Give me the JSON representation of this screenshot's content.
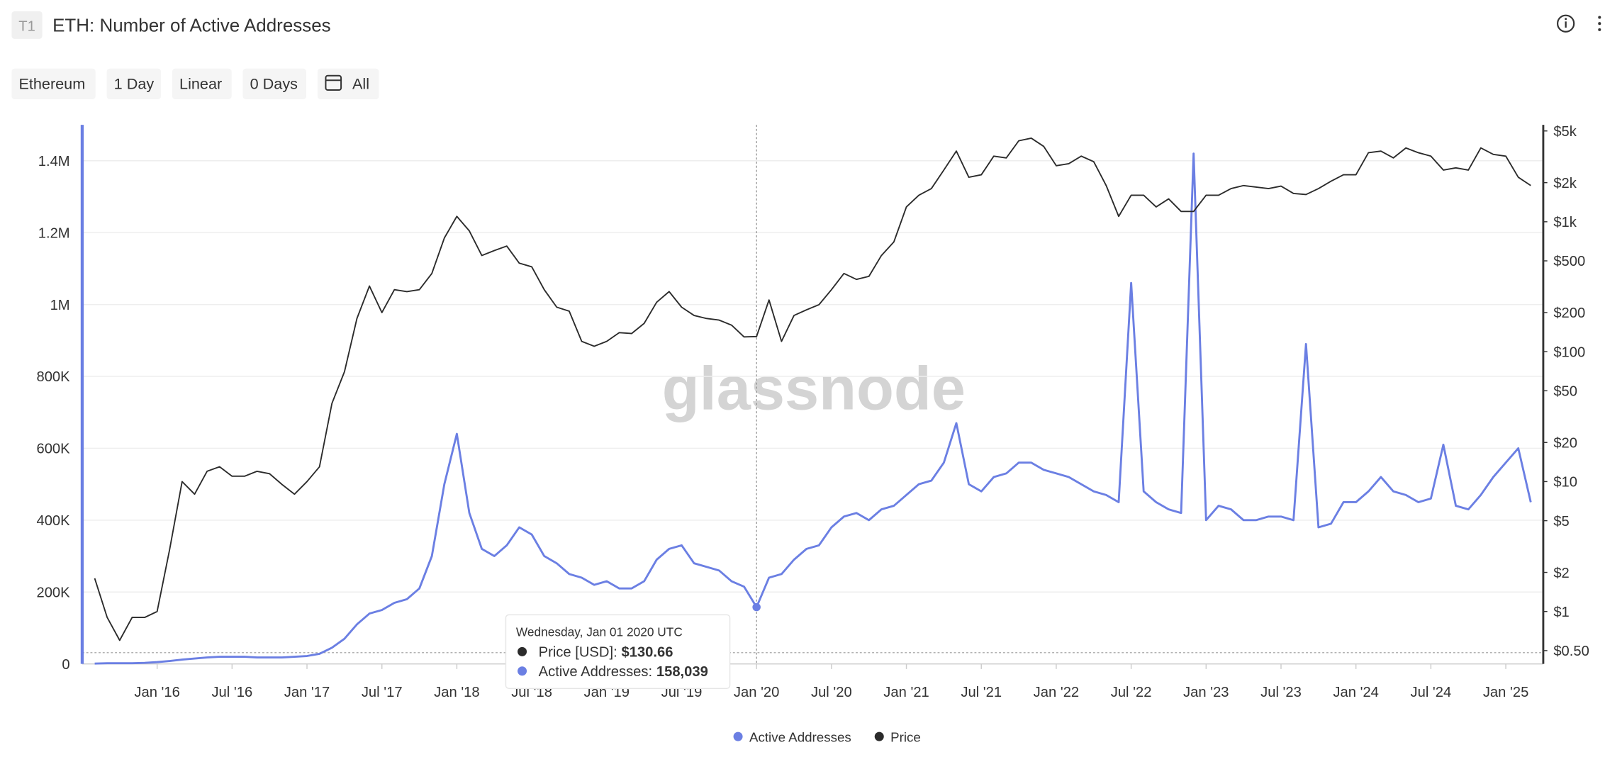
{
  "header": {
    "badge": "T1",
    "title": "ETH: Number of Active Addresses"
  },
  "toolbar": [
    "Ethereum",
    "1 Day",
    "Linear",
    "0 Days",
    "All"
  ],
  "watermark": "glassnode",
  "tooltip": {
    "date": "Wednesday, Jan 01 2020 UTC",
    "items": [
      {
        "label": "Price [USD]:",
        "value": "$130.66"
      },
      {
        "label": "Active Addresses:",
        "value": "158,039"
      }
    ]
  },
  "chart_data": {
    "type": "line",
    "log_scale_y2": true,
    "grid": true,
    "legend": "bottom",
    "x": [
      "2015-08",
      "2015-09",
      "2015-10",
      "2015-11",
      "2015-12",
      "2016-01",
      "2016-02",
      "2016-03",
      "2016-04",
      "2016-05",
      "2016-06",
      "2016-07",
      "2016-08",
      "2016-09",
      "2016-10",
      "2016-11",
      "2016-12",
      "2017-01",
      "2017-02",
      "2017-03",
      "2017-04",
      "2017-05",
      "2017-06",
      "2017-07",
      "2017-08",
      "2017-09",
      "2017-10",
      "2017-11",
      "2017-12",
      "2018-01",
      "2018-02",
      "2018-03",
      "2018-04",
      "2018-05",
      "2018-06",
      "2018-07",
      "2018-08",
      "2018-09",
      "2018-10",
      "2018-11",
      "2018-12",
      "2019-01",
      "2019-02",
      "2019-03",
      "2019-04",
      "2019-05",
      "2019-06",
      "2019-07",
      "2019-08",
      "2019-09",
      "2019-10",
      "2019-11",
      "2019-12",
      "2020-01",
      "2020-02",
      "2020-03",
      "2020-04",
      "2020-05",
      "2020-06",
      "2020-07",
      "2020-08",
      "2020-09",
      "2020-10",
      "2020-11",
      "2020-12",
      "2021-01",
      "2021-02",
      "2021-03",
      "2021-04",
      "2021-05",
      "2021-06",
      "2021-07",
      "2021-08",
      "2021-09",
      "2021-10",
      "2021-11",
      "2021-12",
      "2022-01",
      "2022-02",
      "2022-03",
      "2022-04",
      "2022-05",
      "2022-06",
      "2022-07",
      "2022-08",
      "2022-09",
      "2022-10",
      "2022-11",
      "2022-12",
      "2023-01",
      "2023-02",
      "2023-03",
      "2023-04",
      "2023-05",
      "2023-06",
      "2023-07",
      "2023-08",
      "2023-09",
      "2023-10",
      "2023-11",
      "2023-12",
      "2024-01",
      "2024-02",
      "2024-03",
      "2024-04",
      "2024-05",
      "2024-06",
      "2024-07",
      "2024-08",
      "2024-09",
      "2024-10",
      "2024-11",
      "2024-12",
      "2025-01",
      "2025-02",
      "2025-03"
    ],
    "series": [
      {
        "name": "Active Addresses",
        "color": "#6b7fe3",
        "axis": "y",
        "values": [
          1000,
          2000,
          2000,
          2000,
          3000,
          5000,
          8000,
          12000,
          15000,
          18000,
          20000,
          20000,
          20000,
          18000,
          18000,
          18000,
          20000,
          22000,
          28000,
          45000,
          70000,
          110000,
          140000,
          150000,
          170000,
          180000,
          210000,
          300000,
          500000,
          640000,
          420000,
          320000,
          300000,
          330000,
          380000,
          360000,
          300000,
          280000,
          250000,
          240000,
          220000,
          230000,
          210000,
          210000,
          230000,
          290000,
          320000,
          330000,
          280000,
          270000,
          260000,
          230000,
          215000,
          158039,
          240000,
          250000,
          290000,
          320000,
          330000,
          380000,
          410000,
          420000,
          400000,
          430000,
          440000,
          470000,
          500000,
          510000,
          560000,
          670000,
          500000,
          480000,
          520000,
          530000,
          560000,
          560000,
          540000,
          530000,
          520000,
          500000,
          480000,
          470000,
          450000,
          1060000,
          480000,
          450000,
          430000,
          420000,
          1420000,
          400000,
          440000,
          430000,
          400000,
          400000,
          410000,
          410000,
          400000,
          890000,
          380000,
          390000,
          450000,
          450000,
          480000,
          520000,
          480000,
          470000,
          450000,
          460000,
          610000,
          440000,
          430000,
          470000,
          520000,
          560000,
          600000,
          450000
        ]
      },
      {
        "name": "Price",
        "color": "#2b2b2b",
        "axis": "y2",
        "values": [
          1.8,
          0.9,
          0.6,
          0.9,
          0.9,
          1.0,
          3,
          10,
          8,
          12,
          13,
          11,
          11,
          12,
          11.5,
          9.5,
          8,
          10,
          13,
          40,
          70,
          180,
          320,
          200,
          300,
          290,
          300,
          400,
          750,
          1100,
          850,
          550,
          600,
          650,
          480,
          450,
          300,
          220,
          205,
          120,
          110,
          120,
          140,
          138,
          165,
          240,
          290,
          220,
          190,
          180,
          175,
          160,
          130,
          130.66,
          250,
          120,
          190,
          210,
          230,
          300,
          400,
          360,
          380,
          550,
          700,
          1300,
          1600,
          1800,
          2500,
          3500,
          2200,
          2300,
          3200,
          3100,
          4200,
          4400,
          3800,
          2700,
          2800,
          3200,
          2900,
          1900,
          1100,
          1600,
          1600,
          1300,
          1500,
          1200,
          1200,
          1600,
          1600,
          1800,
          1900,
          1850,
          1800,
          1880,
          1650,
          1620,
          1800,
          2050,
          2300,
          2300,
          3400,
          3500,
          3100,
          3700,
          3400,
          3200,
          2500,
          2600,
          2500,
          3700,
          3300,
          3200,
          2200,
          1900
        ]
      }
    ],
    "xlim": [
      "2015-07",
      "2025-04"
    ],
    "xticks": [
      {
        "value": "2016-01",
        "label": "Jan '16"
      },
      {
        "value": "2016-07",
        "label": "Jul '16"
      },
      {
        "value": "2017-01",
        "label": "Jan '17"
      },
      {
        "value": "2017-07",
        "label": "Jul '17"
      },
      {
        "value": "2018-01",
        "label": "Jan '18"
      },
      {
        "value": "2018-07",
        "label": "Jul '18"
      },
      {
        "value": "2019-01",
        "label": "Jan '19"
      },
      {
        "value": "2019-07",
        "label": "Jul '19"
      },
      {
        "value": "2020-01",
        "label": "Jan '20"
      },
      {
        "value": "2020-07",
        "label": "Jul '20"
      },
      {
        "value": "2021-01",
        "label": "Jan '21"
      },
      {
        "value": "2021-07",
        "label": "Jul '21"
      },
      {
        "value": "2022-01",
        "label": "Jan '22"
      },
      {
        "value": "2022-07",
        "label": "Jul '22"
      },
      {
        "value": "2023-01",
        "label": "Jan '23"
      },
      {
        "value": "2023-07",
        "label": "Jul '23"
      },
      {
        "value": "2024-01",
        "label": "Jan '24"
      },
      {
        "value": "2024-07",
        "label": "Jul '24"
      },
      {
        "value": "2025-01",
        "label": "Jan '25"
      }
    ],
    "ylim": [
      0,
      1500000
    ],
    "yticks": [
      0,
      {
        "value": 200000,
        "label": "200K"
      },
      {
        "value": 400000,
        "label": "400K"
      },
      {
        "value": 600000,
        "label": "600K"
      },
      {
        "value": 800000,
        "label": "800K"
      },
      {
        "value": 1000000,
        "label": "1M"
      },
      {
        "value": 1200000,
        "label": "1.2M"
      },
      {
        "value": 1400000,
        "label": "1.4M"
      }
    ],
    "y2lim": [
      0.395,
      5575
    ],
    "y2ticks": [
      {
        "value": 0.5,
        "label": "$0.50"
      },
      {
        "value": 1,
        "label": "$1"
      },
      {
        "value": 2,
        "label": "$2"
      },
      {
        "value": 5,
        "label": "$5"
      },
      {
        "value": 10,
        "label": "$10"
      },
      {
        "value": 20,
        "label": "$20"
      },
      {
        "value": 50,
        "label": "$50"
      },
      {
        "value": 100,
        "label": "$100"
      },
      {
        "value": 200,
        "label": "$200"
      },
      {
        "value": 500,
        "label": "$500"
      },
      {
        "value": 1000,
        "label": "$1k"
      },
      {
        "value": 2000,
        "label": "$2k"
      },
      {
        "value": 5000,
        "label": "$5k"
      }
    ]
  }
}
